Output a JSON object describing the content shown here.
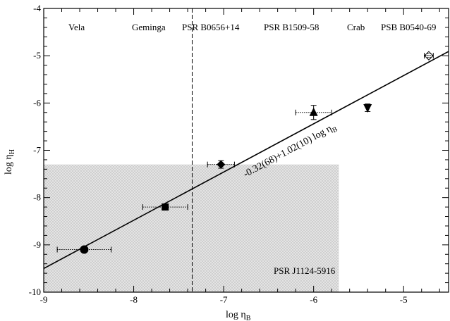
{
  "chart_data": {
    "type": "scatter",
    "xlim": [
      -9,
      -4.5
    ],
    "ylim": [
      -10,
      -4
    ],
    "x_ticks": [
      -9,
      -8,
      -7,
      -6,
      -5
    ],
    "y_ticks": [
      -10,
      -9,
      -8,
      -7,
      -6,
      -5,
      -4
    ],
    "x_tick_labels": [
      "-9",
      "-8",
      "-7",
      "-6",
      "-5"
    ],
    "y_tick_labels": [
      "-10",
      "-9",
      "-8",
      "-7",
      "-6",
      "-5",
      "-4"
    ],
    "xlabel": "log η",
    "xlabel_sub": "B",
    "ylabel": "log η",
    "ylabel_sub": "H",
    "grid": false,
    "points": [
      {
        "name": "Vela",
        "x": -8.55,
        "y": -9.1,
        "xerr_low": 0.3,
        "xerr_high": 0.3,
        "yerr": 0.06,
        "marker": "circle"
      },
      {
        "name": "Geminga",
        "x": -7.65,
        "y": -8.2,
        "xerr_low": 0.25,
        "xerr_high": 0.25,
        "yerr": 0.06,
        "marker": "square"
      },
      {
        "name": "PSR B0656+14",
        "x": -7.03,
        "y": -7.3,
        "xerr_low": 0.15,
        "xerr_high": 0.15,
        "yerr": 0.08,
        "marker": "diamond"
      },
      {
        "name": "PSR B1509-58",
        "x": -6.0,
        "y": -6.2,
        "xerr_low": 0.2,
        "xerr_high": 0.2,
        "yerr": 0.15,
        "marker": "triangle-up"
      },
      {
        "name": "Crab",
        "x": -5.4,
        "y": -6.1,
        "xerr_low": 0.0,
        "xerr_high": 0.0,
        "yerr": 0.08,
        "marker": "triangle-down"
      },
      {
        "name": "PSB B0540-69",
        "x": -4.72,
        "y": -5.0,
        "xerr_low": 0.05,
        "xerr_high": 0.05,
        "yerr": 0.0,
        "marker": "diamond-hatched"
      }
    ],
    "fit_line": {
      "intercept": -0.32,
      "slope": 1.02,
      "label": "-0.32(68)+1.02(10) log η",
      "label_sub": "B"
    },
    "vertical_line": {
      "x": -7.35,
      "style": "dashed"
    },
    "shaded_region": {
      "x_range": [
        -9,
        -5.72
      ],
      "y_range": [
        -10,
        -7.3
      ],
      "label": "PSR J1124-5916"
    },
    "top_labels": [
      "Vela",
      "Geminga",
      "PSR B0656+14",
      "PSR B1509-58",
      "Crab",
      "PSB B0540-69"
    ]
  }
}
